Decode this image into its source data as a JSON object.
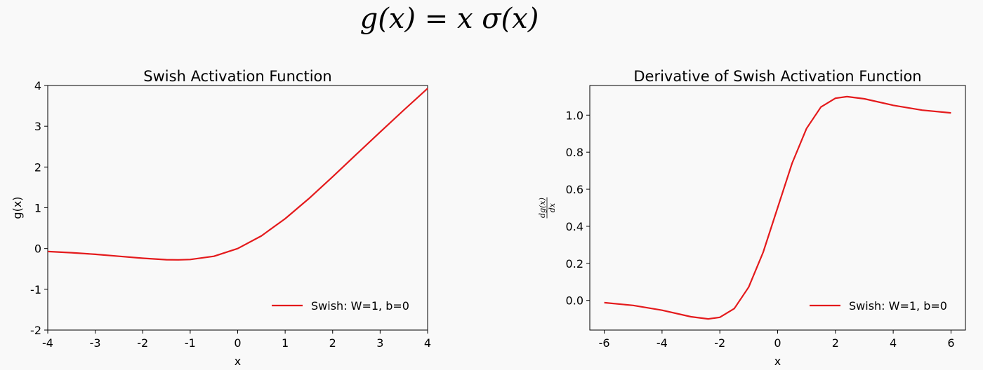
{
  "formula": "g(x) = x σ(x)",
  "chart_data": [
    {
      "type": "line",
      "title": "Swish Activation Function",
      "xlabel": "x",
      "ylabel": "g(x)",
      "xlim": [
        -4,
        4
      ],
      "ylim": [
        -2,
        4
      ],
      "xticks": [
        -4,
        -3,
        -2,
        -1,
        0,
        1,
        2,
        3,
        4
      ],
      "yticks": [
        -2,
        -1,
        0,
        1,
        2,
        3,
        4
      ],
      "grid": false,
      "legend_position": "lower-right",
      "series": [
        {
          "name": "Swish: W=1, b=0",
          "color": "#e41a1c",
          "x": [
            -4.0,
            -3.5,
            -3.0,
            -2.5,
            -2.0,
            -1.5,
            -1.25,
            -1.0,
            -0.5,
            0.0,
            0.5,
            1.0,
            1.5,
            2.0,
            2.5,
            3.0,
            3.5,
            4.0
          ],
          "y": [
            -0.072,
            -0.102,
            -0.142,
            -0.189,
            -0.238,
            -0.274,
            -0.278,
            -0.269,
            -0.189,
            0.0,
            0.311,
            0.731,
            1.226,
            1.762,
            2.311,
            2.858,
            3.398,
            3.928
          ]
        }
      ]
    },
    {
      "type": "line",
      "title": "Derivative of Swish Activation Function",
      "xlabel": "x",
      "ylabel": "dg(x)/dx",
      "xlim": [
        -6.5,
        6.5
      ],
      "ylim": [
        -0.16,
        1.16
      ],
      "xticks": [
        -6,
        -4,
        -2,
        0,
        2,
        4,
        6
      ],
      "yticks": [
        "0.0",
        "0.2",
        "0.4",
        "0.6",
        "0.8",
        "1.0"
      ],
      "grid": false,
      "legend_position": "lower-right",
      "series": [
        {
          "name": "Swish: W=1, b=0",
          "color": "#e41a1c",
          "x": [
            -6.0,
            -5.0,
            -4.0,
            -3.0,
            -2.4,
            -2.0,
            -1.5,
            -1.0,
            -0.5,
            0.0,
            0.5,
            1.0,
            1.5,
            2.0,
            2.4,
            3.0,
            4.0,
            5.0,
            6.0
          ],
          "y": [
            -0.012,
            -0.027,
            -0.053,
            -0.088,
            -0.1,
            -0.091,
            -0.044,
            0.072,
            0.26,
            0.5,
            0.74,
            0.928,
            1.044,
            1.091,
            1.1,
            1.088,
            1.053,
            1.027,
            1.012
          ]
        }
      ]
    }
  ]
}
